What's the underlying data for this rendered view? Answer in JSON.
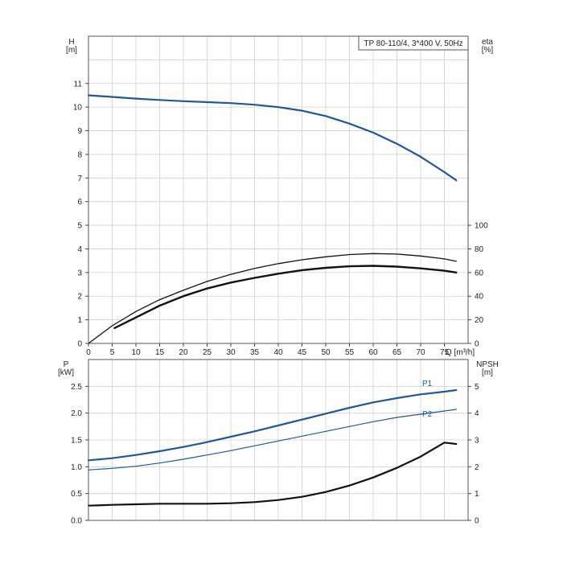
{
  "chart_data": [
    {
      "type": "line",
      "title": "TP 80-110/4, 3*400 V, 50Hz",
      "xlabel": "Q [m³/h]",
      "ylabel_left": "H [m]",
      "ylabel_right": "eta [%]",
      "xlim": [
        0,
        80
      ],
      "ylim_left": [
        0,
        13
      ],
      "ylim_right": [
        0,
        100
      ],
      "x_ticks": [
        "0",
        "5",
        "10",
        "15",
        "20",
        "25",
        "30",
        "35",
        "40",
        "45",
        "50",
        "55",
        "60",
        "65",
        "70",
        "75"
      ],
      "y_ticks_left": [
        "0",
        "1",
        "2",
        "3",
        "4",
        "5",
        "6",
        "7",
        "8",
        "9",
        "10",
        "11"
      ],
      "y_ticks_right": [
        "0",
        "20",
        "40",
        "60",
        "80",
        "100"
      ],
      "grid": true,
      "series": [
        {
          "axis": "left",
          "color": "#1f5797",
          "width": 2.2,
          "x": [
            0,
            5,
            10,
            15,
            20,
            25,
            30,
            35,
            40,
            45,
            50,
            55,
            60,
            65,
            70,
            75,
            77.5
          ],
          "y": [
            10.5,
            10.43,
            10.36,
            10.3,
            10.25,
            10.21,
            10.17,
            10.1,
            10.0,
            9.85,
            9.62,
            9.3,
            8.92,
            8.45,
            7.9,
            7.25,
            6.9
          ]
        },
        {
          "axis": "right",
          "color": "#111111",
          "width": 1.3,
          "x": [
            0,
            5,
            10,
            15,
            20,
            25,
            30,
            35,
            40,
            45,
            50,
            55,
            60,
            65,
            70,
            75,
            77.5
          ],
          "y": [
            0,
            15,
            27,
            37,
            45,
            52.5,
            58.5,
            63.5,
            67.5,
            70.8,
            73.3,
            75.2,
            76,
            75.6,
            74,
            71.5,
            69.5
          ]
        },
        {
          "axis": "right",
          "color": "#111111",
          "width": 2.4,
          "x": [
            5.5,
            10,
            15,
            20,
            25,
            30,
            35,
            40,
            45,
            50,
            55,
            60,
            65,
            70,
            75,
            77.5
          ],
          "y": [
            13,
            22,
            32,
            40,
            46.5,
            51.5,
            55.5,
            59,
            62,
            64,
            65.3,
            65.7,
            65,
            63.5,
            61.5,
            60
          ]
        }
      ]
    },
    {
      "type": "line",
      "xlabel": "",
      "ylabel_left": "P [kW]",
      "ylabel_right": "NPSH [m]",
      "xlim": [
        0,
        80
      ],
      "ylim_left": [
        0,
        3
      ],
      "ylim_right": [
        0,
        6
      ],
      "y_ticks_left": [
        "0.0",
        "0.5",
        "1.0",
        "1.5",
        "2.0",
        "2.5"
      ],
      "y_ticks_right": [
        "0",
        "1",
        "2",
        "3",
        "4",
        "5"
      ],
      "grid": true,
      "series": [
        {
          "name": "P1",
          "axis": "left",
          "color": "#1f5797",
          "width": 2.2,
          "x": [
            0,
            5,
            10,
            15,
            20,
            25,
            30,
            35,
            40,
            45,
            50,
            55,
            60,
            65,
            70,
            75,
            77.5
          ],
          "y": [
            1.12,
            1.16,
            1.22,
            1.29,
            1.37,
            1.46,
            1.56,
            1.66,
            1.77,
            1.88,
            1.99,
            2.1,
            2.2,
            2.28,
            2.35,
            2.4,
            2.43
          ]
        },
        {
          "name": "P2",
          "axis": "left",
          "color": "#1f5797",
          "width": 1.2,
          "x": [
            0,
            5,
            10,
            15,
            20,
            25,
            30,
            35,
            40,
            45,
            50,
            55,
            60,
            65,
            70,
            75,
            77.5
          ],
          "y": [
            0.94,
            0.97,
            1.01,
            1.07,
            1.14,
            1.22,
            1.3,
            1.39,
            1.48,
            1.57,
            1.66,
            1.75,
            1.84,
            1.92,
            1.98,
            2.04,
            2.07
          ]
        },
        {
          "axis": "right",
          "color": "#111111",
          "width": 2.2,
          "x": [
            0,
            5,
            10,
            15,
            20,
            25,
            30,
            35,
            40,
            45,
            50,
            55,
            60,
            65,
            70,
            75,
            77.5
          ],
          "y": [
            0.55,
            0.58,
            0.6,
            0.62,
            0.62,
            0.62,
            0.64,
            0.68,
            0.76,
            0.88,
            1.06,
            1.3,
            1.6,
            1.96,
            2.38,
            2.9,
            2.85
          ]
        }
      ]
    }
  ]
}
